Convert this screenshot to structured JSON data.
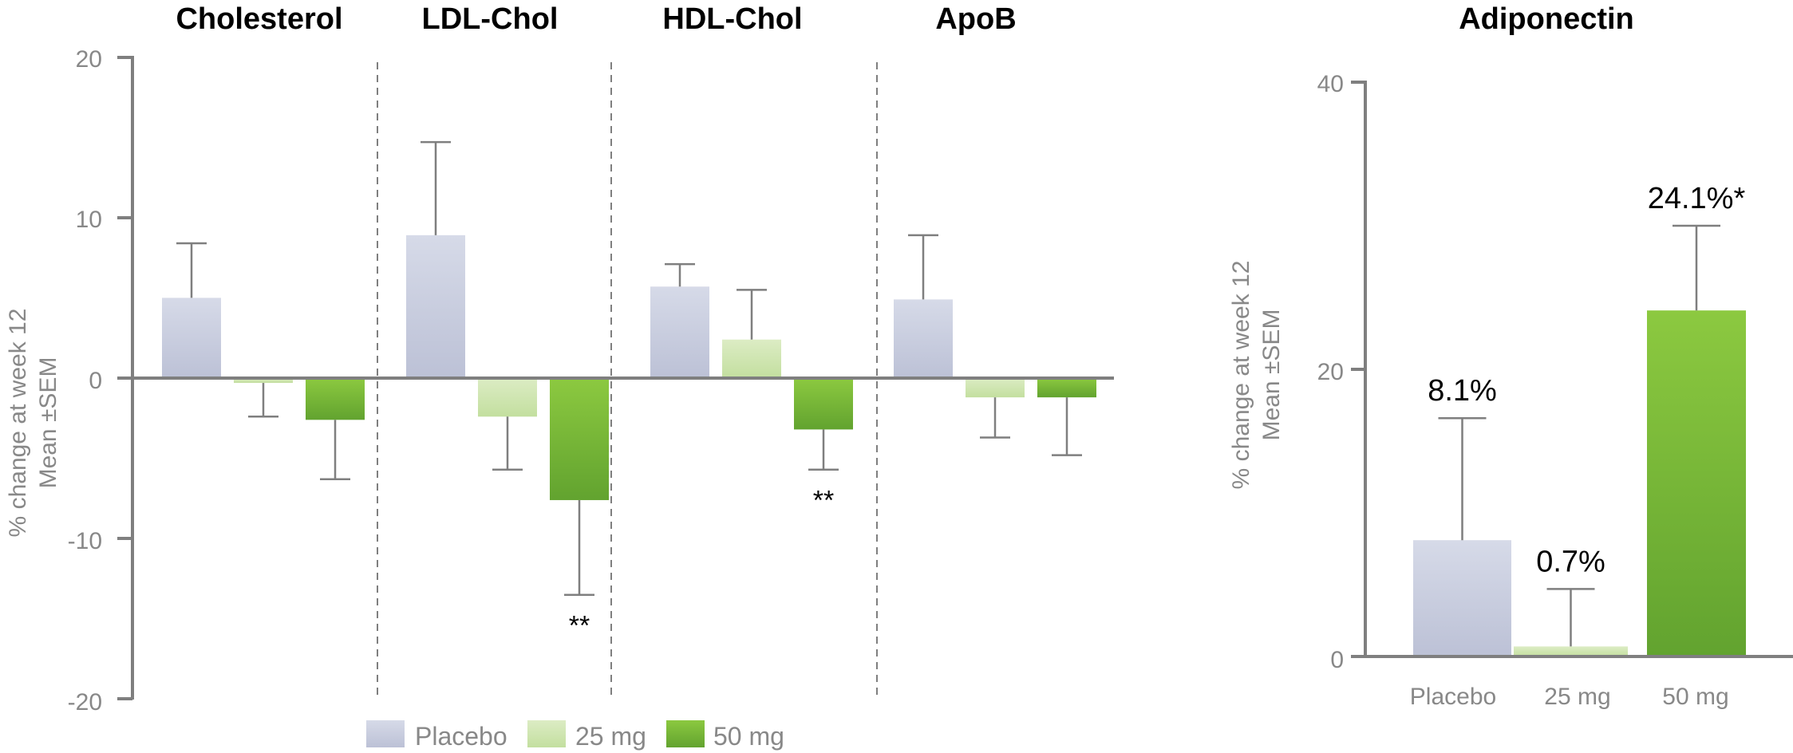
{
  "chart_data": [
    {
      "type": "bar",
      "ylabel_line1": "% change at week 12",
      "ylabel_line2": "Mean ±SEM",
      "ylim": [
        -20,
        20
      ],
      "yticks": [
        "-20",
        "-10",
        "0",
        "10",
        "20"
      ],
      "groups": [
        "Cholesterol",
        "LDL-Chol",
        "HDL-Chol",
        "ApoB"
      ],
      "series": [
        {
          "name": "Placebo",
          "values": [
            5.0,
            8.9,
            5.7,
            4.9
          ],
          "sem": [
            3.4,
            5.8,
            1.4,
            4.0
          ]
        },
        {
          "name": "25 mg",
          "values": [
            -0.3,
            -2.4,
            2.4,
            -1.2
          ],
          "sem": [
            2.1,
            3.3,
            3.1,
            2.5
          ]
        },
        {
          "name": "50 mg",
          "values": [
            -2.6,
            -7.6,
            -3.2,
            -1.2
          ],
          "sem": [
            3.7,
            5.9,
            2.5,
            3.6
          ]
        }
      ],
      "annotations": [
        {
          "group": "LDL-Chol",
          "series": "50 mg",
          "text": "**"
        },
        {
          "group": "HDL-Chol",
          "series": "50 mg",
          "text": "**"
        }
      ],
      "legend": [
        "Placebo",
        "25 mg",
        "50 mg"
      ]
    },
    {
      "type": "bar",
      "title": "Adiponectin",
      "ylabel_line1": "% change at week 12",
      "ylabel_line2": "Mean ±SEM",
      "ylim": [
        0,
        40
      ],
      "yticks": [
        "0",
        "20",
        "40"
      ],
      "categories": [
        "Placebo",
        "25 mg",
        "50 mg"
      ],
      "values": [
        8.1,
        0.7,
        24.1
      ],
      "sem": [
        8.5,
        4.0,
        5.9
      ],
      "labels": [
        "8.1%",
        "0.7%",
        "24.1%*"
      ]
    }
  ],
  "colors": {
    "placebo_top": "#d4d8e6",
    "placebo_bottom": "#bcc1d6",
    "mg25_top": "#d9ebbe",
    "mg25_bottom": "#c4e0a0",
    "mg50_top": "#8cc940",
    "mg50_bottom": "#62a32f"
  }
}
